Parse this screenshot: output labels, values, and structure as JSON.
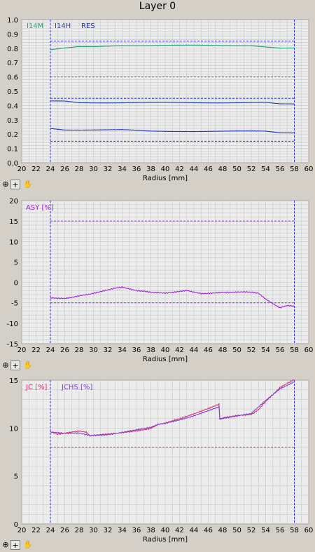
{
  "window": {
    "title": "Layer 0"
  },
  "colors": {
    "grid": "#c8c8c8",
    "plot_bg": "#ececec",
    "boundary": "#3030ff",
    "i14m": "#20a080",
    "i14h": "#2040c0",
    "res": "#2030c8",
    "asy": "#a020e0",
    "jc": "#e03070",
    "jchs": "#8040e0"
  },
  "toolbar_icons": [
    "zoom-icon",
    "crosshair-icon",
    "hand-icon"
  ],
  "chart_data": [
    {
      "type": "line",
      "id": "top",
      "xlabel": "Radius [mm]",
      "xlim": [
        20,
        60
      ],
      "ylim": [
        0,
        1.0
      ],
      "xticks": [
        "20",
        "22",
        "24",
        "26",
        "28",
        "30",
        "32",
        "34",
        "36",
        "38",
        "40",
        "42",
        "44",
        "46",
        "48",
        "50",
        "52",
        "54",
        "56",
        "58",
        "60"
      ],
      "yticks": [
        "0.0",
        "0.1",
        "0.2",
        "0.3",
        "0.4",
        "0.5",
        "0.6",
        "0.7",
        "0.8",
        "0.9",
        "1.0"
      ],
      "legend": [
        "I14M",
        "I14H",
        "RES"
      ],
      "boundaries_x": [
        24,
        58
      ],
      "thresholds": [
        {
          "name": "I14M max",
          "y": 0.85,
          "color": "boundary"
        },
        {
          "name": "I14M min",
          "y": 0.6,
          "color": "i14m"
        },
        {
          "name": "RES max",
          "y": 0.45,
          "color": "boundary"
        },
        {
          "name": "RES min",
          "y": 0.15,
          "color": "boundary"
        }
      ],
      "series": [
        {
          "name": "I14M",
          "color": "i14m",
          "x": [
            24,
            26,
            28,
            30,
            34,
            38,
            42,
            46,
            50,
            52,
            54,
            56,
            58
          ],
          "y": [
            0.79,
            0.8,
            0.81,
            0.81,
            0.82,
            0.82,
            0.82,
            0.82,
            0.82,
            0.82,
            0.81,
            0.8,
            0.8
          ]
        },
        {
          "name": "I14H",
          "color": "i14h",
          "x": [
            24,
            26,
            28,
            30,
            34,
            38,
            42,
            46,
            50,
            54,
            56,
            58
          ],
          "y": [
            0.43,
            0.43,
            0.42,
            0.42,
            0.42,
            0.42,
            0.42,
            0.42,
            0.42,
            0.42,
            0.41,
            0.41
          ]
        },
        {
          "name": "RES",
          "color": "res",
          "x": [
            24,
            26,
            28,
            30,
            34,
            38,
            42,
            46,
            50,
            54,
            56,
            58
          ],
          "y": [
            0.24,
            0.23,
            0.23,
            0.23,
            0.23,
            0.22,
            0.22,
            0.22,
            0.22,
            0.22,
            0.21,
            0.21
          ]
        }
      ]
    },
    {
      "type": "line",
      "id": "mid",
      "xlabel": "Radius [mm]",
      "xlim": [
        20,
        60
      ],
      "ylim": [
        -15,
        20
      ],
      "xticks": [
        "20",
        "22",
        "24",
        "26",
        "28",
        "30",
        "32",
        "34",
        "36",
        "38",
        "40",
        "42",
        "44",
        "46",
        "48",
        "50",
        "52",
        "54",
        "56",
        "58",
        "60"
      ],
      "yticks": [
        "-15",
        "-10",
        "-5",
        "0",
        "5",
        "10",
        "15",
        "20"
      ],
      "legend": [
        "ASY [%]"
      ],
      "boundaries_x": [
        24,
        58
      ],
      "thresholds": [
        {
          "name": "ASY max",
          "y": 15,
          "color": "asy"
        },
        {
          "name": "ASY min",
          "y": -5,
          "color": "asy"
        }
      ],
      "series": [
        {
          "name": "ASY [%]",
          "color": "asy",
          "x": [
            24,
            25,
            26,
            27,
            28,
            29,
            30,
            31,
            32,
            33,
            34,
            35,
            36,
            37,
            38,
            39,
            40,
            41,
            42,
            43,
            44,
            45,
            46,
            47,
            48,
            49,
            50,
            51,
            52,
            53,
            54,
            55,
            56,
            57,
            58
          ],
          "y": [
            -3.8,
            -4.0,
            -4.1,
            -3.9,
            -3.5,
            -3.2,
            -2.8,
            -2.3,
            -1.8,
            -1.3,
            -1.0,
            -1.4,
            -1.8,
            -2.0,
            -2.3,
            -2.5,
            -2.7,
            -2.6,
            -2.4,
            -2.2,
            -2.6,
            -2.9,
            -2.8,
            -2.6,
            -2.4,
            -2.3,
            -2.2,
            -2.1,
            -2.2,
            -2.5,
            -4.0,
            -5.2,
            -6.3,
            -5.8,
            -6.0
          ]
        }
      ]
    },
    {
      "type": "line",
      "id": "bot",
      "xlabel": "Radius [mm]",
      "xlim": [
        20,
        60
      ],
      "ylim": [
        0,
        15
      ],
      "xticks": [
        "20",
        "22",
        "24",
        "26",
        "28",
        "30",
        "32",
        "34",
        "36",
        "38",
        "40",
        "42",
        "44",
        "46",
        "48",
        "50",
        "52",
        "54",
        "56",
        "58",
        "60"
      ],
      "yticks": [
        "0",
        "5",
        "10",
        "15"
      ],
      "legend": [
        "JC [%]",
        "JCHS [%]"
      ],
      "boundaries_x": [
        24,
        58
      ],
      "thresholds": [
        {
          "name": "JC max",
          "y": 8,
          "color": "jc"
        }
      ],
      "series": [
        {
          "name": "JC [%]",
          "color": "jc",
          "x": [
            24,
            25,
            26,
            27,
            28,
            29,
            29.5,
            30,
            32,
            34,
            36,
            38,
            39,
            40,
            42,
            44,
            46,
            47.5,
            47.6,
            48,
            50,
            52,
            53,
            54,
            55,
            56,
            57,
            58
          ],
          "y": [
            9.6,
            9.3,
            9.4,
            9.5,
            9.6,
            9.5,
            9.1,
            9.2,
            9.4,
            9.6,
            9.8,
            10.0,
            10.4,
            10.5,
            10.9,
            11.4,
            12.0,
            12.5,
            11.0,
            11.1,
            11.4,
            11.5,
            12.0,
            12.8,
            13.5,
            14.2,
            14.6,
            15.0
          ]
        },
        {
          "name": "JCHS [%]",
          "color": "jchs",
          "x": [
            24,
            26,
            28,
            29.5,
            30,
            32,
            34,
            36,
            38,
            39,
            40,
            42,
            44,
            46,
            47.5,
            47.6,
            48,
            50,
            52,
            54,
            56,
            58
          ],
          "y": [
            9.5,
            9.4,
            9.5,
            9.3,
            9.3,
            9.4,
            9.6,
            9.8,
            10.0,
            10.3,
            10.4,
            10.8,
            11.3,
            11.9,
            12.3,
            11.0,
            11.1,
            11.3,
            11.5,
            12.8,
            14.0,
            14.8
          ]
        }
      ]
    }
  ]
}
